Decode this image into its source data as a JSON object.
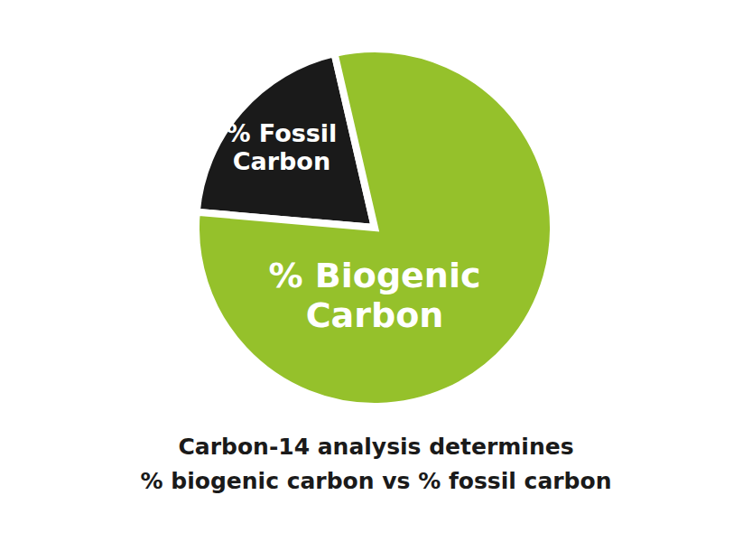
{
  "chart_data": {
    "type": "pie",
    "title": [
      "Carbon-14 analysis determines",
      "% biogenic carbon vs % fossil carbon"
    ],
    "categories": [
      "% Fossil Carbon",
      "% Biogenic Carbon"
    ],
    "values": [
      20,
      80
    ],
    "colors": [
      "#1a1a1a",
      "#95c12b"
    ]
  }
}
